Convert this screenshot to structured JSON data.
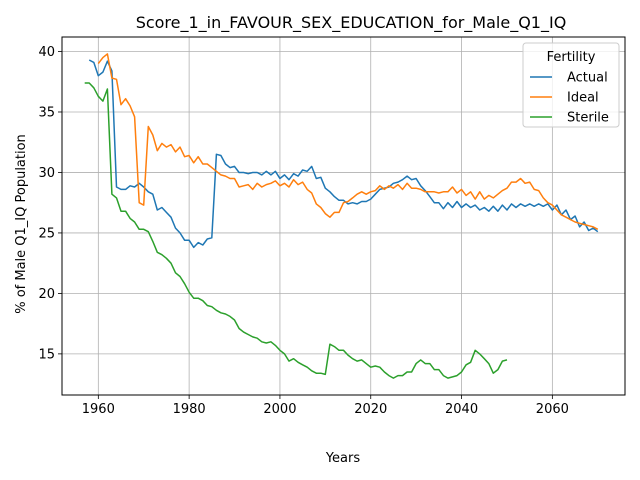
{
  "chart_data": {
    "type": "line",
    "title": "Score_1_in_FAVOUR_SEX_EDUCATION_for_Male_Q1_IQ",
    "xlabel": "Years",
    "ylabel": "% of Male Q1_IQ Population",
    "xlim": [
      1952,
      2076
    ],
    "ylim": [
      11.6,
      41.2
    ],
    "xticks": [
      1960,
      1980,
      2000,
      2020,
      2040,
      2060
    ],
    "yticks": [
      15,
      20,
      25,
      30,
      35,
      40
    ],
    "grid": true,
    "legend": {
      "title": "Fertility",
      "placement": "top-right"
    },
    "series": [
      {
        "name": "Actual",
        "color": "#1f77b4",
        "points": [
          [
            1958,
            39.3
          ],
          [
            1959,
            39.1
          ],
          [
            1960,
            38
          ],
          [
            1961,
            38.3
          ],
          [
            1962,
            39.2
          ],
          [
            1963,
            38.4
          ],
          [
            1964,
            28.8
          ],
          [
            1965,
            28.6
          ],
          [
            1966,
            28.6
          ],
          [
            1967,
            28.9
          ],
          [
            1968,
            28.8
          ],
          [
            1969,
            29.1
          ],
          [
            1970,
            28.8
          ],
          [
            1971,
            28.4
          ],
          [
            1972,
            28.2
          ],
          [
            1973,
            26.9
          ],
          [
            1974,
            27.1
          ],
          [
            1975,
            26.7
          ],
          [
            1976,
            26.3
          ],
          [
            1977,
            25.4
          ],
          [
            1978,
            25
          ],
          [
            1979,
            24.4
          ],
          [
            1980,
            24.4
          ],
          [
            1981,
            23.8
          ],
          [
            1982,
            24.2
          ],
          [
            1983,
            24
          ],
          [
            1984,
            24.5
          ],
          [
            1985,
            24.6
          ],
          [
            1986,
            31.5
          ],
          [
            1987,
            31.4
          ],
          [
            1988,
            30.7
          ],
          [
            1989,
            30.4
          ],
          [
            1990,
            30.5
          ],
          [
            1991,
            30
          ],
          [
            1992,
            30
          ],
          [
            1993,
            29.9
          ],
          [
            1994,
            30
          ],
          [
            1995,
            30
          ],
          [
            1996,
            29.8
          ],
          [
            1997,
            30.1
          ],
          [
            1998,
            29.8
          ],
          [
            1999,
            30.1
          ],
          [
            2000,
            29.5
          ],
          [
            2001,
            29.8
          ],
          [
            2002,
            29.4
          ],
          [
            2003,
            29.9
          ],
          [
            2004,
            29.7
          ],
          [
            2005,
            30.2
          ],
          [
            2006,
            30.1
          ],
          [
            2007,
            30.5
          ],
          [
            2008,
            29.5
          ],
          [
            2009,
            29.6
          ],
          [
            2010,
            28.7
          ],
          [
            2011,
            28.4
          ],
          [
            2012,
            28
          ],
          [
            2013,
            27.7
          ],
          [
            2014,
            27.7
          ],
          [
            2015,
            27.4
          ],
          [
            2016,
            27.5
          ],
          [
            2017,
            27.4
          ],
          [
            2018,
            27.6
          ],
          [
            2019,
            27.6
          ],
          [
            2020,
            27.8
          ],
          [
            2021,
            28.2
          ],
          [
            2022,
            28.6
          ],
          [
            2023,
            28.7
          ],
          [
            2024,
            28.8
          ],
          [
            2025,
            29.1
          ],
          [
            2026,
            29.2
          ],
          [
            2027,
            29.4
          ],
          [
            2028,
            29.7
          ],
          [
            2029,
            29.4
          ],
          [
            2030,
            29.5
          ],
          [
            2031,
            28.9
          ],
          [
            2032,
            28.5
          ],
          [
            2033,
            28
          ],
          [
            2034,
            27.5
          ],
          [
            2035,
            27.5
          ],
          [
            2036,
            27
          ],
          [
            2037,
            27.5
          ],
          [
            2038,
            27.1
          ],
          [
            2039,
            27.6
          ],
          [
            2040,
            27.1
          ],
          [
            2041,
            27.4
          ],
          [
            2042,
            27.1
          ],
          [
            2043,
            27.3
          ],
          [
            2044,
            26.9
          ],
          [
            2045,
            27.1
          ],
          [
            2046,
            26.8
          ],
          [
            2047,
            27.2
          ],
          [
            2048,
            26.8
          ],
          [
            2049,
            27.3
          ],
          [
            2050,
            26.9
          ],
          [
            2051,
            27.4
          ],
          [
            2052,
            27.1
          ],
          [
            2053,
            27.4
          ],
          [
            2054,
            27.2
          ],
          [
            2055,
            27.4
          ],
          [
            2056,
            27.2
          ],
          [
            2057,
            27.4
          ],
          [
            2058,
            27.2
          ],
          [
            2059,
            27.4
          ],
          [
            2060,
            26.9
          ],
          [
            2061,
            27.3
          ],
          [
            2062,
            26.5
          ],
          [
            2063,
            26.9
          ],
          [
            2064,
            26.1
          ],
          [
            2065,
            26.4
          ],
          [
            2066,
            25.5
          ],
          [
            2067,
            25.9
          ],
          [
            2068,
            25.2
          ],
          [
            2069,
            25.4
          ],
          [
            2070,
            25.1
          ]
        ]
      },
      {
        "name": "Ideal",
        "color": "#ff7f0e",
        "points": [
          [
            1960,
            39
          ],
          [
            1961,
            39.5
          ],
          [
            1962,
            39.8
          ],
          [
            1963,
            37.8
          ],
          [
            1964,
            37.7
          ],
          [
            1965,
            35.6
          ],
          [
            1966,
            36.1
          ],
          [
            1967,
            35.5
          ],
          [
            1968,
            34.6
          ],
          [
            1969,
            27.5
          ],
          [
            1970,
            27.3
          ],
          [
            1971,
            33.8
          ],
          [
            1972,
            33.1
          ],
          [
            1973,
            31.8
          ],
          [
            1974,
            32.4
          ],
          [
            1975,
            32.1
          ],
          [
            1976,
            32.3
          ],
          [
            1977,
            31.7
          ],
          [
            1978,
            32.1
          ],
          [
            1979,
            31.3
          ],
          [
            1980,
            31.4
          ],
          [
            1981,
            30.8
          ],
          [
            1982,
            31.3
          ],
          [
            1983,
            30.7
          ],
          [
            1984,
            30.7
          ],
          [
            1985,
            30.4
          ],
          [
            1986,
            30.1
          ],
          [
            1987,
            29.8
          ],
          [
            1988,
            29.7
          ],
          [
            1989,
            29.5
          ],
          [
            1990,
            29.5
          ],
          [
            1991,
            28.8
          ],
          [
            1992,
            28.9
          ],
          [
            1993,
            29
          ],
          [
            1994,
            28.6
          ],
          [
            1995,
            29.1
          ],
          [
            1996,
            28.8
          ],
          [
            1997,
            29
          ],
          [
            1998,
            29.1
          ],
          [
            1999,
            29.3
          ],
          [
            2000,
            28.9
          ],
          [
            2001,
            29.1
          ],
          [
            2002,
            28.8
          ],
          [
            2003,
            29.4
          ],
          [
            2004,
            29
          ],
          [
            2005,
            29.2
          ],
          [
            2006,
            28.6
          ],
          [
            2007,
            28.3
          ],
          [
            2008,
            27.4
          ],
          [
            2009,
            27.1
          ],
          [
            2010,
            26.6
          ],
          [
            2011,
            26.3
          ],
          [
            2012,
            26.7
          ],
          [
            2013,
            26.7
          ],
          [
            2014,
            27.5
          ],
          [
            2015,
            27.6
          ],
          [
            2016,
            27.9
          ],
          [
            2017,
            28.2
          ],
          [
            2018,
            28.4
          ],
          [
            2019,
            28.2
          ],
          [
            2020,
            28.4
          ],
          [
            2021,
            28.5
          ],
          [
            2022,
            28.9
          ],
          [
            2023,
            28.6
          ],
          [
            2024,
            28.9
          ],
          [
            2025,
            28.7
          ],
          [
            2026,
            29
          ],
          [
            2027,
            28.6
          ],
          [
            2028,
            29.1
          ],
          [
            2029,
            28.7
          ],
          [
            2030,
            28.7
          ],
          [
            2031,
            28.6
          ],
          [
            2032,
            28.4
          ],
          [
            2033,
            28.4
          ],
          [
            2034,
            28.4
          ],
          [
            2035,
            28.3
          ],
          [
            2036,
            28.4
          ],
          [
            2037,
            28.4
          ],
          [
            2038,
            28.8
          ],
          [
            2039,
            28.3
          ],
          [
            2040,
            28.6
          ],
          [
            2041,
            28.1
          ],
          [
            2042,
            28.4
          ],
          [
            2043,
            27.8
          ],
          [
            2044,
            28.4
          ],
          [
            2045,
            27.8
          ],
          [
            2046,
            28.1
          ],
          [
            2047,
            27.9
          ],
          [
            2048,
            28.2
          ],
          [
            2049,
            28.5
          ],
          [
            2050,
            28.7
          ],
          [
            2051,
            29.2
          ],
          [
            2052,
            29.2
          ],
          [
            2053,
            29.5
          ],
          [
            2054,
            29.1
          ],
          [
            2055,
            29.2
          ],
          [
            2056,
            28.6
          ],
          [
            2057,
            28.5
          ],
          [
            2058,
            27.9
          ],
          [
            2059,
            27.5
          ],
          [
            2060,
            27.3
          ],
          [
            2061,
            26.9
          ],
          [
            2062,
            26.5
          ],
          [
            2063,
            26.3
          ],
          [
            2064,
            26.1
          ],
          [
            2065,
            25.9
          ],
          [
            2066,
            25.8
          ],
          [
            2067,
            25.7
          ],
          [
            2068,
            25.6
          ],
          [
            2069,
            25.5
          ],
          [
            2070,
            25.3
          ]
        ]
      },
      {
        "name": "Sterile",
        "color": "#2ca02c",
        "points": [
          [
            1957,
            37.4
          ],
          [
            1958,
            37.4
          ],
          [
            1959,
            37
          ],
          [
            1960,
            36.3
          ],
          [
            1961,
            35.9
          ],
          [
            1962,
            36.9
          ],
          [
            1963,
            28.2
          ],
          [
            1964,
            27.9
          ],
          [
            1965,
            26.8
          ],
          [
            1966,
            26.8
          ],
          [
            1967,
            26.2
          ],
          [
            1968,
            25.9
          ],
          [
            1969,
            25.3
          ],
          [
            1970,
            25.3
          ],
          [
            1971,
            25.1
          ],
          [
            1972,
            24.3
          ],
          [
            1973,
            23.4
          ],
          [
            1974,
            23.2
          ],
          [
            1975,
            22.9
          ],
          [
            1976,
            22.5
          ],
          [
            1977,
            21.7
          ],
          [
            1978,
            21.4
          ],
          [
            1979,
            20.8
          ],
          [
            1980,
            20.1
          ],
          [
            1981,
            19.6
          ],
          [
            1982,
            19.6
          ],
          [
            1983,
            19.4
          ],
          [
            1984,
            19
          ],
          [
            1985,
            18.9
          ],
          [
            1986,
            18.6
          ],
          [
            1987,
            18.4
          ],
          [
            1988,
            18.3
          ],
          [
            1989,
            18.1
          ],
          [
            1990,
            17.8
          ],
          [
            1991,
            17.1
          ],
          [
            1992,
            16.8
          ],
          [
            1993,
            16.6
          ],
          [
            1994,
            16.4
          ],
          [
            1995,
            16.3
          ],
          [
            1996,
            16
          ],
          [
            1997,
            15.9
          ],
          [
            1998,
            16
          ],
          [
            1999,
            15.7
          ],
          [
            2000,
            15.3
          ],
          [
            2001,
            15
          ],
          [
            2002,
            14.4
          ],
          [
            2003,
            14.6
          ],
          [
            2004,
            14.3
          ],
          [
            2005,
            14.1
          ],
          [
            2006,
            13.9
          ],
          [
            2007,
            13.6
          ],
          [
            2008,
            13.4
          ],
          [
            2009,
            13.4
          ],
          [
            2010,
            13.3
          ],
          [
            2011,
            15.8
          ],
          [
            2012,
            15.6
          ],
          [
            2013,
            15.3
          ],
          [
            2014,
            15.3
          ],
          [
            2015,
            14.9
          ],
          [
            2016,
            14.6
          ],
          [
            2017,
            14.4
          ],
          [
            2018,
            14.5
          ],
          [
            2019,
            14.2
          ],
          [
            2020,
            13.9
          ],
          [
            2021,
            14
          ],
          [
            2022,
            13.9
          ],
          [
            2023,
            13.5
          ],
          [
            2024,
            13.2
          ],
          [
            2025,
            13
          ],
          [
            2026,
            13.2
          ],
          [
            2027,
            13.2
          ],
          [
            2028,
            13.5
          ],
          [
            2029,
            13.5
          ],
          [
            2030,
            14.2
          ],
          [
            2031,
            14.5
          ],
          [
            2032,
            14.2
          ],
          [
            2033,
            14.2
          ],
          [
            2034,
            13.7
          ],
          [
            2035,
            13.7
          ],
          [
            2036,
            13.2
          ],
          [
            2037,
            13
          ],
          [
            2038,
            13.1
          ],
          [
            2039,
            13.2
          ],
          [
            2040,
            13.5
          ],
          [
            2041,
            14.1
          ],
          [
            2042,
            14.3
          ],
          [
            2043,
            15.3
          ],
          [
            2044,
            15
          ],
          [
            2045,
            14.6
          ],
          [
            2046,
            14.2
          ],
          [
            2047,
            13.4
          ],
          [
            2048,
            13.7
          ],
          [
            2049,
            14.4
          ],
          [
            2050,
            14.5
          ]
        ]
      }
    ]
  }
}
